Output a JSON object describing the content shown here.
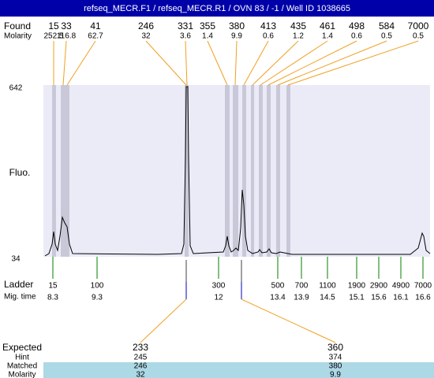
{
  "header": {
    "title": "refseq_MECR.F1 / refseq_MECR.R1 / OVN 83 / -1 / Well ID 1038665"
  },
  "found": {
    "label": "Found",
    "values": [
      15,
      33,
      41,
      246,
      331,
      355,
      380,
      413,
      435,
      461,
      498,
      584,
      7000
    ]
  },
  "molarity": {
    "label": "Molarity",
    "values": [
      252.5,
      116.8,
      62.7,
      32,
      3.6,
      1.4,
      9.9,
      0.6,
      1.2,
      1.4,
      0.6,
      0.5,
      0.5
    ]
  },
  "y_axis": {
    "label": "Fluo.",
    "max": 642,
    "min": 34
  },
  "ladder": {
    "label": "Ladder",
    "values": [
      15,
      100,
      300,
      500,
      700,
      1100,
      1900,
      2900,
      4900,
      7000
    ]
  },
  "mig_time": {
    "label": "Mig. time",
    "values": [
      8.3,
      9.3,
      12,
      13.4,
      13.9,
      14.5,
      15.1,
      15.6,
      16.1,
      16.6
    ]
  },
  "expected": {
    "label": "Expected",
    "values": [
      233,
      360
    ]
  },
  "hint": {
    "label": "Hint",
    "values": [
      245,
      374
    ]
  },
  "matched": {
    "label": "Matched",
    "values": [
      246,
      380
    ]
  },
  "matched_molarity": {
    "label": "Molarity",
    "values": [
      32,
      9.9
    ]
  }
}
